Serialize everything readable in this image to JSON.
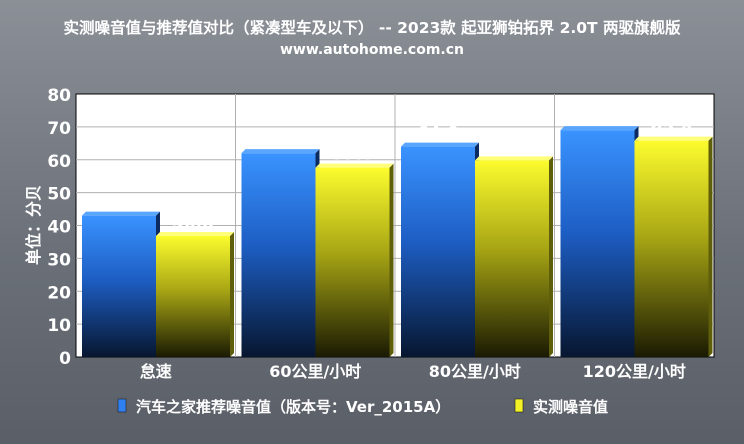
{
  "chart_data": {
    "type": "bar",
    "title": "实测噪音值与推荐值对比（紧凑型车及以下） -- 2023款 起亚狮铂拓界 2.0T 两驱旗舰版",
    "subtitle": "www.autohome.com.cn",
    "ylabel": "单位：分贝",
    "xlabel": "",
    "ylim": [
      0,
      80
    ],
    "yticks": [
      0,
      10,
      20,
      30,
      40,
      50,
      60,
      70,
      80
    ],
    "grid": true,
    "legend_position": "bottom",
    "categories": [
      "怠速",
      "60公里/小时",
      "80公里/小时",
      "120公里/小时"
    ],
    "series": [
      {
        "name": "汽车之家推荐噪音值（版本号：Ver_2015A）",
        "values": [
          43.0,
          62.0,
          64.0,
          69.0
        ],
        "color": "#2f7ff0"
      },
      {
        "name": "实测噪音值",
        "values": [
          36.8,
          57.6,
          59.8,
          65.8
        ],
        "color": "#f2f224"
      }
    ]
  }
}
